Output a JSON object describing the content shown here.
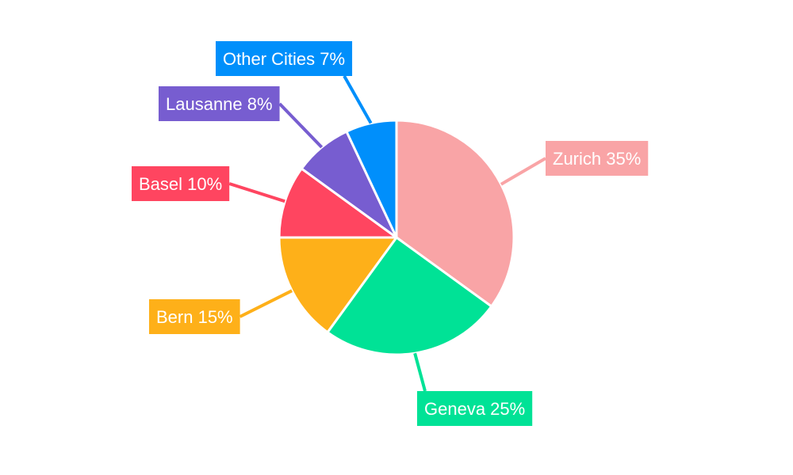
{
  "chart_data": {
    "type": "pie",
    "title": "",
    "series": [
      {
        "values": [
          35,
          25,
          15,
          10,
          8,
          7
        ],
        "categories": [
          "Zurich",
          "Geneva",
          "Bern",
          "Basel",
          "Lausanne",
          "Other Cities"
        ],
        "labels": [
          "Zurich 35%",
          "Geneva 25%",
          "Bern 15%",
          "Basel 10%",
          "Lausanne 8%",
          "Other Cities 7%"
        ]
      }
    ],
    "colors": [
      "#f9a4a6",
      "#00e296",
      "#feb019",
      "#ff4560",
      "#775dd0",
      "#008ffb"
    ],
    "start_angle": "top",
    "direction": "clockwise",
    "legend": "none"
  }
}
